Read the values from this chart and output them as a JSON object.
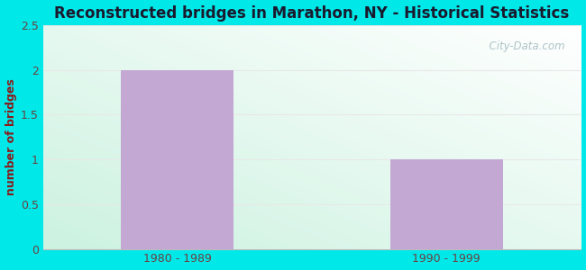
{
  "title": "Reconstructed bridges in Marathon, NY - Historical Statistics",
  "categories": [
    "1980 - 1989",
    "1990 - 1999"
  ],
  "values": [
    2,
    1
  ],
  "bar_color": "#c4a8d4",
  "ylabel": "number of bridges",
  "ylim": [
    0,
    2.5
  ],
  "yticks": [
    0,
    0.5,
    1,
    1.5,
    2,
    2.5
  ],
  "ytick_labels": [
    "0",
    "0.5",
    "1",
    "1.5",
    "2",
    "2.5"
  ],
  "title_fontsize": 12,
  "label_fontsize": 9,
  "tick_fontsize": 9,
  "ylabel_color": "#8b1a1a",
  "tick_color": "#6b4040",
  "title_color": "#1a1a2e",
  "outer_bg": "#00e8e8",
  "plot_bg_left": "#cceedd",
  "plot_bg_right": "#f5fff8",
  "watermark": "  City-Data.com",
  "grid_color": "#e8e8e8",
  "bar_width": 0.42,
  "x_positions": [
    0,
    1
  ],
  "xlim": [
    -0.5,
    1.5
  ]
}
